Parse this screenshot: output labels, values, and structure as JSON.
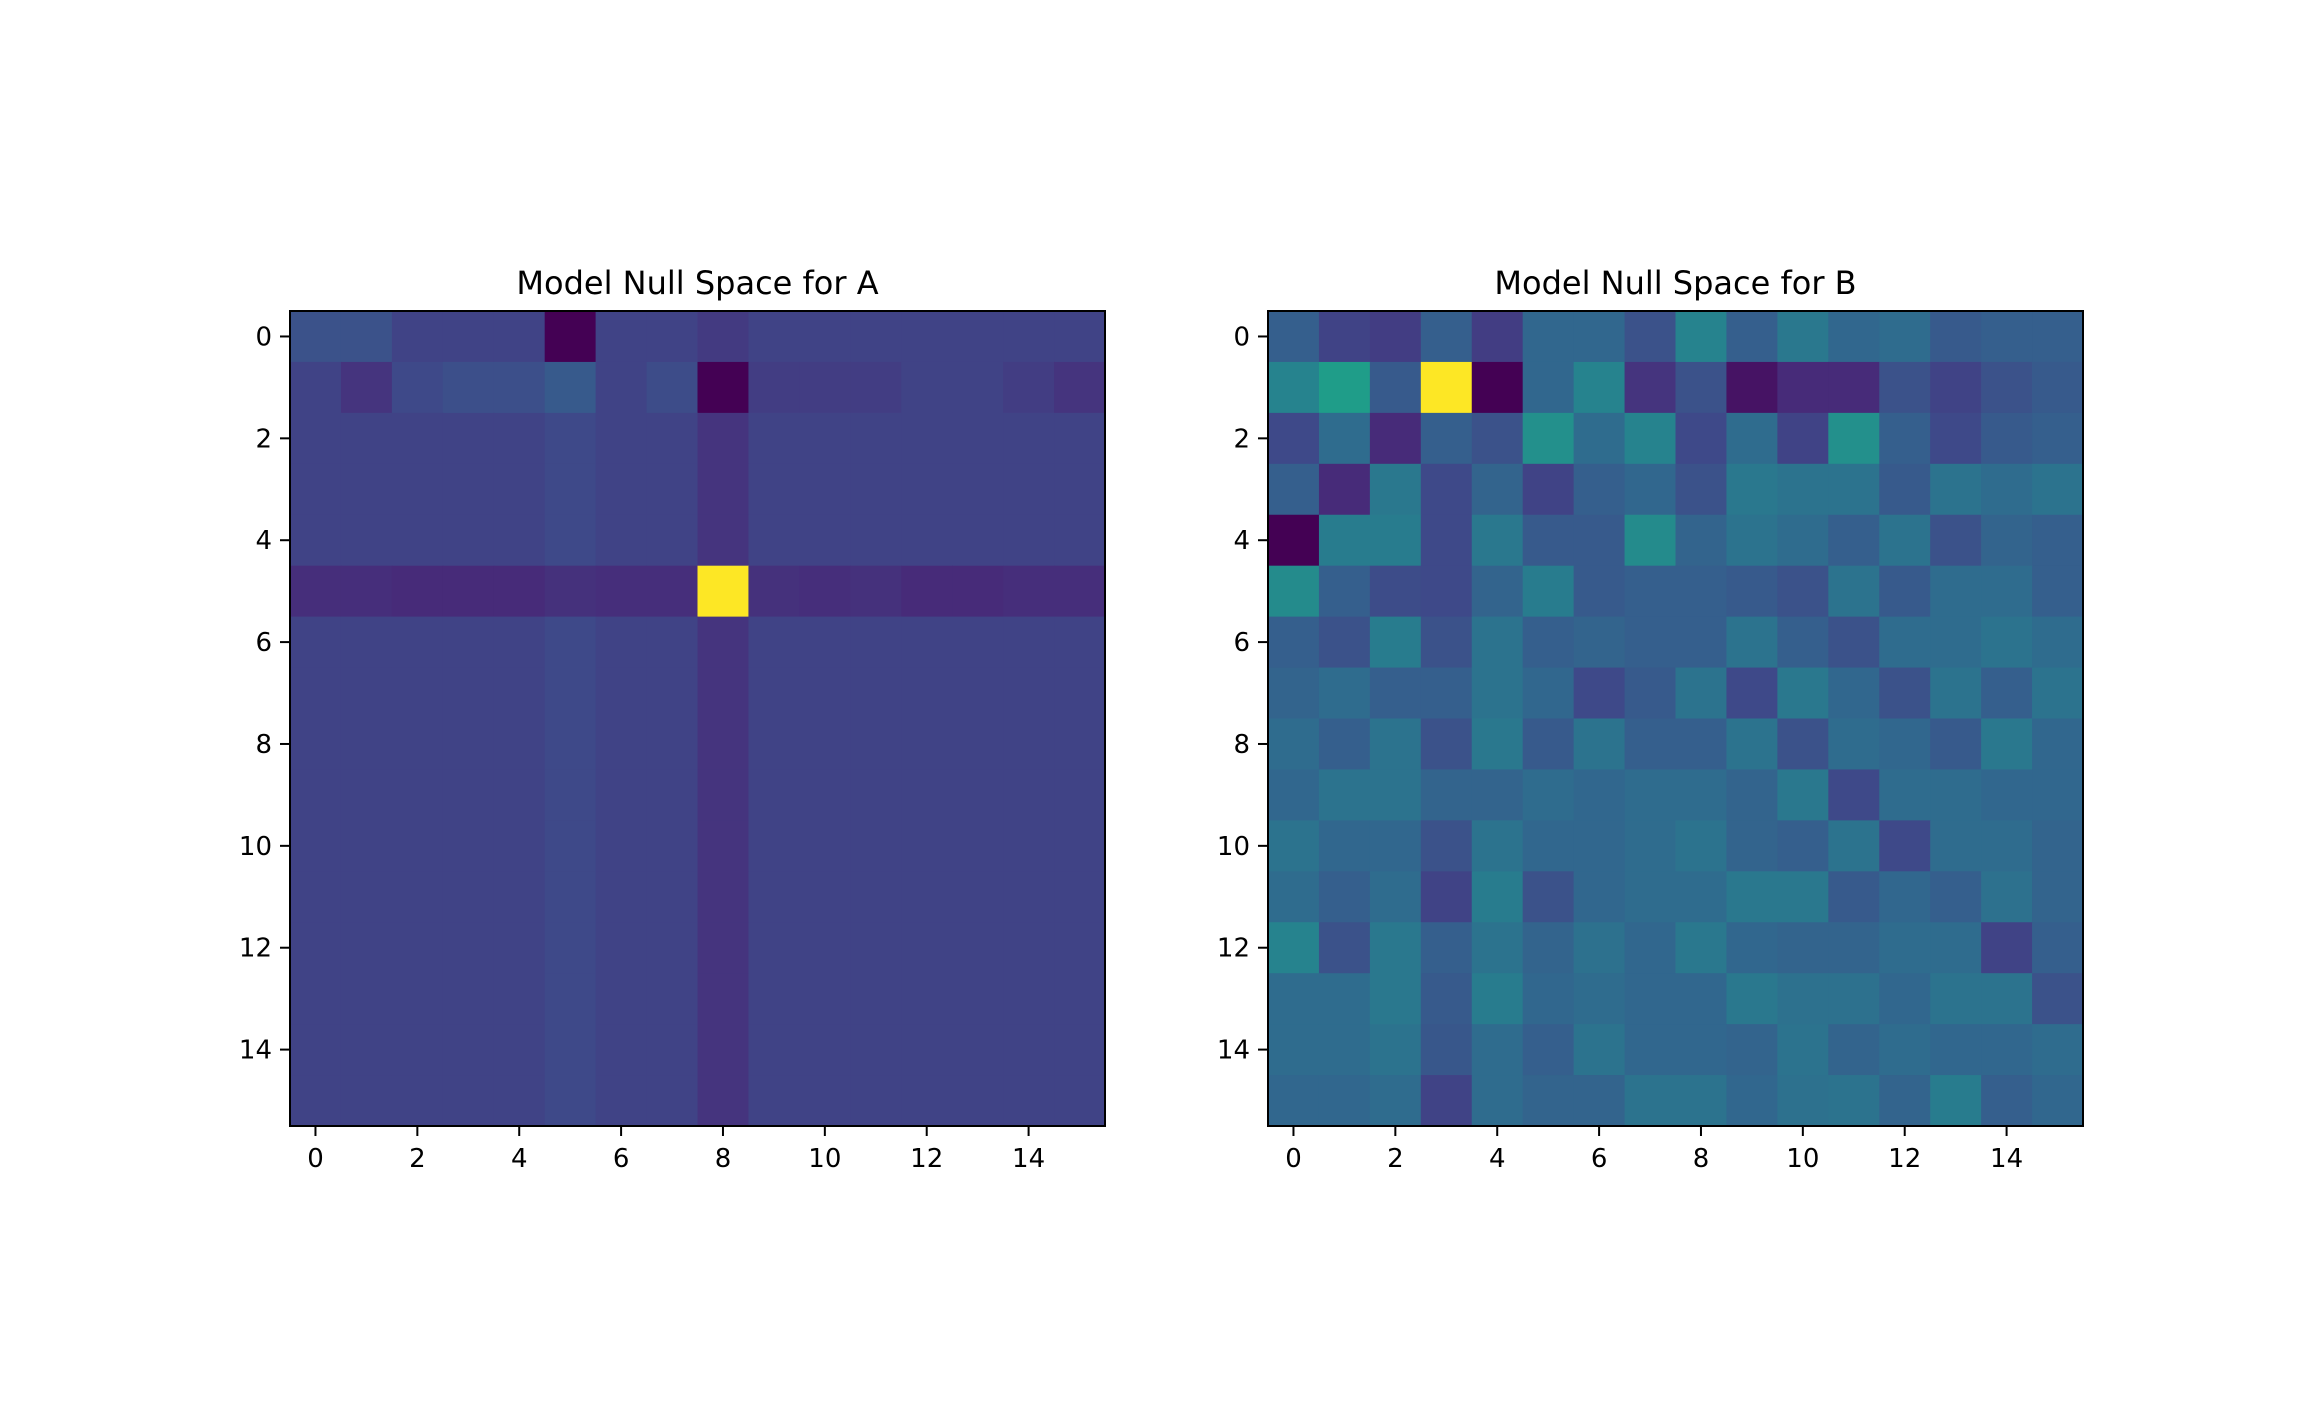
{
  "figure": {
    "colormap": "viridis",
    "colormap_stops": [
      "#440154",
      "#482878",
      "#3e4a89",
      "#31688e",
      "#26828e",
      "#1f9e89",
      "#35b779",
      "#6ece58",
      "#b5de2b",
      "#fde725"
    ]
  },
  "chart_data": [
    {
      "type": "heatmap",
      "title": "Model Null Space for A",
      "xlabel": "",
      "ylabel": "",
      "x_ticks": [
        "0",
        "2",
        "4",
        "6",
        "8",
        "10",
        "12",
        "14"
      ],
      "y_ticks": [
        "0",
        "2",
        "4",
        "6",
        "8",
        "10",
        "12",
        "14"
      ],
      "rows": 16,
      "cols": 16,
      "value_range": [
        0,
        1
      ],
      "grid": false,
      "values": [
        [
          0.25,
          0.25,
          0.2,
          0.2,
          0.2,
          0.0,
          0.2,
          0.2,
          0.17,
          0.2,
          0.2,
          0.2,
          0.2,
          0.2,
          0.2,
          0.2
        ],
        [
          0.2,
          0.15,
          0.22,
          0.24,
          0.24,
          0.28,
          0.2,
          0.23,
          0.0,
          0.18,
          0.18,
          0.18,
          0.2,
          0.2,
          0.18,
          0.15
        ],
        [
          0.2,
          0.2,
          0.2,
          0.2,
          0.2,
          0.22,
          0.2,
          0.2,
          0.15,
          0.2,
          0.2,
          0.2,
          0.2,
          0.2,
          0.2,
          0.2
        ],
        [
          0.2,
          0.2,
          0.2,
          0.2,
          0.2,
          0.22,
          0.2,
          0.2,
          0.15,
          0.2,
          0.2,
          0.2,
          0.2,
          0.2,
          0.2,
          0.2
        ],
        [
          0.2,
          0.2,
          0.2,
          0.2,
          0.2,
          0.22,
          0.2,
          0.2,
          0.15,
          0.2,
          0.2,
          0.2,
          0.2,
          0.2,
          0.2,
          0.2
        ],
        [
          0.13,
          0.13,
          0.12,
          0.12,
          0.12,
          0.14,
          0.13,
          0.13,
          1.0,
          0.14,
          0.13,
          0.14,
          0.12,
          0.12,
          0.13,
          0.13
        ],
        [
          0.2,
          0.2,
          0.2,
          0.2,
          0.2,
          0.22,
          0.2,
          0.2,
          0.15,
          0.2,
          0.2,
          0.2,
          0.2,
          0.2,
          0.2,
          0.2
        ],
        [
          0.2,
          0.2,
          0.2,
          0.2,
          0.2,
          0.22,
          0.2,
          0.2,
          0.15,
          0.2,
          0.2,
          0.2,
          0.2,
          0.2,
          0.2,
          0.2
        ],
        [
          0.2,
          0.2,
          0.2,
          0.2,
          0.2,
          0.22,
          0.2,
          0.2,
          0.15,
          0.2,
          0.2,
          0.2,
          0.2,
          0.2,
          0.2,
          0.2
        ],
        [
          0.2,
          0.2,
          0.2,
          0.2,
          0.2,
          0.22,
          0.2,
          0.2,
          0.15,
          0.2,
          0.2,
          0.2,
          0.2,
          0.2,
          0.2,
          0.2
        ],
        [
          0.2,
          0.2,
          0.2,
          0.2,
          0.2,
          0.22,
          0.2,
          0.2,
          0.15,
          0.2,
          0.2,
          0.2,
          0.2,
          0.2,
          0.2,
          0.2
        ],
        [
          0.2,
          0.2,
          0.2,
          0.2,
          0.2,
          0.22,
          0.2,
          0.2,
          0.15,
          0.2,
          0.2,
          0.2,
          0.2,
          0.2,
          0.2,
          0.2
        ],
        [
          0.2,
          0.2,
          0.2,
          0.2,
          0.2,
          0.22,
          0.2,
          0.2,
          0.15,
          0.2,
          0.2,
          0.2,
          0.2,
          0.2,
          0.2,
          0.2
        ],
        [
          0.2,
          0.2,
          0.2,
          0.2,
          0.2,
          0.22,
          0.2,
          0.2,
          0.15,
          0.2,
          0.2,
          0.2,
          0.2,
          0.2,
          0.2,
          0.2
        ],
        [
          0.2,
          0.2,
          0.2,
          0.2,
          0.2,
          0.22,
          0.2,
          0.2,
          0.15,
          0.2,
          0.2,
          0.2,
          0.2,
          0.2,
          0.2,
          0.2
        ],
        [
          0.2,
          0.2,
          0.2,
          0.2,
          0.2,
          0.22,
          0.2,
          0.2,
          0.15,
          0.2,
          0.2,
          0.2,
          0.2,
          0.2,
          0.2,
          0.2
        ]
      ]
    },
    {
      "type": "heatmap",
      "title": "Model Null Space for B",
      "xlabel": "",
      "ylabel": "",
      "x_ticks": [
        "0",
        "2",
        "4",
        "6",
        "8",
        "10",
        "12",
        "14"
      ],
      "y_ticks": [
        "0",
        "2",
        "4",
        "6",
        "8",
        "10",
        "12",
        "14"
      ],
      "rows": 16,
      "cols": 16,
      "value_range": [
        0,
        1
      ],
      "grid": false,
      "values": [
        [
          0.3,
          0.2,
          0.18,
          0.3,
          0.18,
          0.33,
          0.33,
          0.25,
          0.45,
          0.3,
          0.4,
          0.33,
          0.35,
          0.28,
          0.3,
          0.3
        ],
        [
          0.45,
          0.55,
          0.28,
          1.0,
          0.0,
          0.33,
          0.45,
          0.15,
          0.25,
          0.05,
          0.12,
          0.12,
          0.25,
          0.2,
          0.25,
          0.28
        ],
        [
          0.22,
          0.35,
          0.12,
          0.3,
          0.25,
          0.5,
          0.35,
          0.45,
          0.22,
          0.35,
          0.2,
          0.5,
          0.3,
          0.22,
          0.28,
          0.3
        ],
        [
          0.3,
          0.12,
          0.4,
          0.22,
          0.32,
          0.2,
          0.3,
          0.33,
          0.25,
          0.4,
          0.38,
          0.38,
          0.28,
          0.38,
          0.35,
          0.38
        ],
        [
          0.0,
          0.42,
          0.42,
          0.22,
          0.4,
          0.28,
          0.28,
          0.48,
          0.32,
          0.38,
          0.35,
          0.3,
          0.38,
          0.25,
          0.32,
          0.3
        ],
        [
          0.48,
          0.3,
          0.23,
          0.22,
          0.32,
          0.42,
          0.28,
          0.3,
          0.3,
          0.28,
          0.25,
          0.38,
          0.28,
          0.35,
          0.35,
          0.3
        ],
        [
          0.3,
          0.25,
          0.42,
          0.25,
          0.38,
          0.3,
          0.32,
          0.3,
          0.3,
          0.38,
          0.3,
          0.25,
          0.35,
          0.35,
          0.38,
          0.35
        ],
        [
          0.32,
          0.35,
          0.3,
          0.3,
          0.38,
          0.33,
          0.22,
          0.28,
          0.38,
          0.22,
          0.4,
          0.33,
          0.25,
          0.38,
          0.3,
          0.38
        ],
        [
          0.35,
          0.3,
          0.38,
          0.25,
          0.4,
          0.28,
          0.38,
          0.3,
          0.3,
          0.38,
          0.25,
          0.35,
          0.33,
          0.28,
          0.4,
          0.33
        ],
        [
          0.33,
          0.38,
          0.38,
          0.32,
          0.32,
          0.35,
          0.33,
          0.35,
          0.35,
          0.32,
          0.4,
          0.22,
          0.35,
          0.35,
          0.33,
          0.33
        ],
        [
          0.38,
          0.33,
          0.33,
          0.25,
          0.38,
          0.33,
          0.33,
          0.35,
          0.38,
          0.32,
          0.3,
          0.38,
          0.22,
          0.35,
          0.35,
          0.32
        ],
        [
          0.35,
          0.3,
          0.35,
          0.2,
          0.42,
          0.25,
          0.33,
          0.35,
          0.35,
          0.4,
          0.4,
          0.28,
          0.33,
          0.3,
          0.37,
          0.32
        ],
        [
          0.45,
          0.25,
          0.4,
          0.3,
          0.38,
          0.32,
          0.37,
          0.33,
          0.4,
          0.33,
          0.32,
          0.32,
          0.35,
          0.35,
          0.2,
          0.3
        ],
        [
          0.35,
          0.35,
          0.4,
          0.28,
          0.42,
          0.33,
          0.35,
          0.33,
          0.33,
          0.4,
          0.37,
          0.37,
          0.33,
          0.38,
          0.38,
          0.25
        ],
        [
          0.35,
          0.35,
          0.38,
          0.27,
          0.35,
          0.3,
          0.38,
          0.33,
          0.33,
          0.32,
          0.38,
          0.32,
          0.35,
          0.33,
          0.33,
          0.35
        ],
        [
          0.33,
          0.33,
          0.35,
          0.2,
          0.35,
          0.32,
          0.32,
          0.38,
          0.38,
          0.33,
          0.37,
          0.38,
          0.32,
          0.42,
          0.3,
          0.33
        ]
      ]
    }
  ]
}
